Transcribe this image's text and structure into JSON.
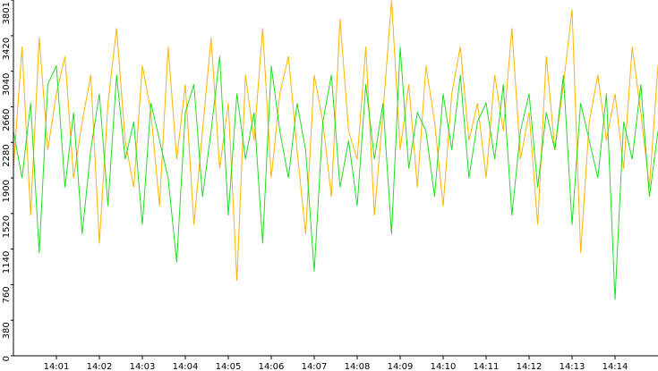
{
  "chart_data": {
    "type": "line",
    "x": [
      0,
      0.2,
      0.4,
      0.6,
      0.8,
      1,
      1.2,
      1.4,
      1.6,
      1.8,
      2,
      2.2,
      2.4,
      2.6,
      2.8,
      3,
      3.2,
      3.4,
      3.6,
      3.8,
      4,
      4.2,
      4.4,
      4.6,
      4.8,
      5,
      5.2,
      5.4,
      5.6,
      5.8,
      6,
      6.2,
      6.4,
      6.6,
      6.8,
      7,
      7.2,
      7.4,
      7.6,
      7.8,
      8,
      8.2,
      8.4,
      8.6,
      8.8,
      9,
      9.2,
      9.4,
      9.6,
      9.8,
      10,
      10.2,
      10.4,
      10.6,
      10.8,
      11,
      11.2,
      11.4,
      11.6,
      11.8,
      12,
      12.2,
      12.4,
      12.6,
      12.8,
      13,
      13.2,
      13.4,
      13.6,
      13.8,
      14,
      14.2,
      14.4,
      14.6,
      14.8,
      15
    ],
    "series": [
      {
        "color": "#ffb400",
        "values": [
          2000,
          3300,
          1500,
          3400,
          2200,
          2800,
          3200,
          1900,
          2500,
          3000,
          1200,
          2700,
          3500,
          2300,
          1800,
          3100,
          2600,
          1600,
          3300,
          2100,
          2900,
          1400,
          2400,
          3400,
          2000,
          2700,
          800,
          3000,
          2300,
          3500,
          1900,
          2800,
          3200,
          2200,
          1300,
          3000,
          2500,
          1700,
          3600,
          2400,
          2100,
          3300,
          1500,
          2600,
          3800,
          2200,
          2900,
          1800,
          3100,
          2500,
          1600,
          2800,
          3300,
          2300,
          2700,
          1900,
          3000,
          2400,
          3500,
          2100,
          2600,
          1400,
          3200,
          2200,
          2900,
          3700,
          1100,
          2500,
          3000,
          2300,
          2800,
          2000,
          3300,
          2600,
          1800,
          3100
        ]
      },
      {
        "color": "#22dd22",
        "values": [
          2400,
          1900,
          2700,
          1100,
          2900,
          3100,
          1800,
          2600,
          1300,
          2200,
          2800,
          1600,
          3000,
          2100,
          2500,
          1400,
          2700,
          2300,
          1900,
          1000,
          2600,
          2900,
          1700,
          2400,
          3200,
          1500,
          2800,
          2100,
          2600,
          1200,
          3100,
          2400,
          1900,
          2700,
          2200,
          900,
          2500,
          3000,
          1800,
          2300,
          1600,
          2900,
          2100,
          2700,
          1300,
          3300,
          2000,
          2600,
          2400,
          1700,
          2800,
          2200,
          3000,
          1900,
          2500,
          2700,
          2100,
          2900,
          1500,
          2400,
          2800,
          1800,
          2600,
          2200,
          3000,
          1400,
          2700,
          2300,
          1900,
          2800,
          600,
          2500,
          2100,
          2900,
          1700,
          2400
        ]
      }
    ],
    "xlim": [
      0,
      15
    ],
    "xticks": [
      {
        "value": 1,
        "label": "14:01"
      },
      {
        "value": 2,
        "label": "14:02"
      },
      {
        "value": 3,
        "label": "14:03"
      },
      {
        "value": 4,
        "label": "14:04"
      },
      {
        "value": 5,
        "label": "14:05"
      },
      {
        "value": 6,
        "label": "14:06"
      },
      {
        "value": 7,
        "label": "14:07"
      },
      {
        "value": 8,
        "label": "14:08"
      },
      {
        "value": 9,
        "label": "14:09"
      },
      {
        "value": 10,
        "label": "14:10"
      },
      {
        "value": 11,
        "label": "14:11"
      },
      {
        "value": 12,
        "label": "14:12"
      },
      {
        "value": 13,
        "label": "14:13"
      },
      {
        "value": 14,
        "label": "14:14"
      }
    ],
    "ylim": [
      0,
      3801
    ],
    "yticks": [
      0,
      380,
      760,
      1140,
      1520,
      1900,
      2280,
      2660,
      3040,
      3420,
      3801
    ]
  }
}
